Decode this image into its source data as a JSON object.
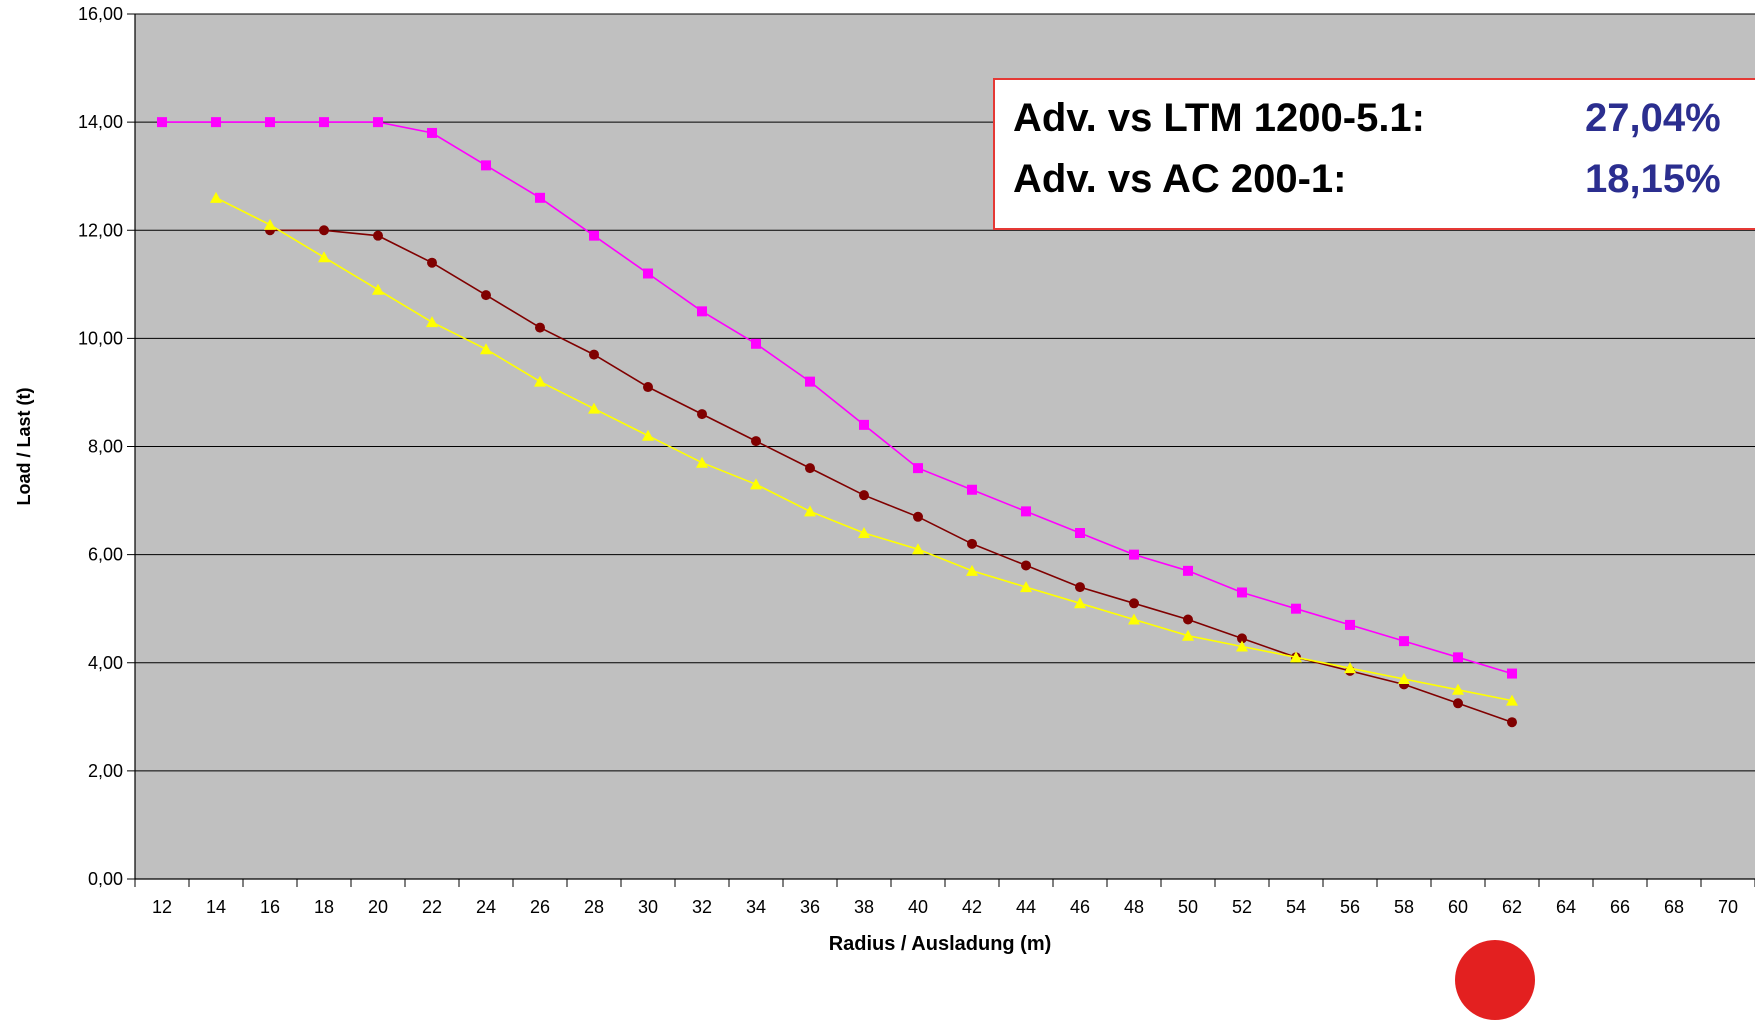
{
  "chart_data": {
    "type": "line",
    "title": "",
    "xlabel": "Radius / Ausladung (m)",
    "ylabel": "Load / Last (t)",
    "xlim": [
      11,
      71
    ],
    "ylim": [
      0,
      16
    ],
    "x_ticks": [
      "12",
      "14",
      "16",
      "18",
      "20",
      "22",
      "24",
      "26",
      "28",
      "30",
      "32",
      "34",
      "36",
      "38",
      "40",
      "42",
      "44",
      "46",
      "48",
      "50",
      "52",
      "54",
      "56",
      "58",
      "60",
      "62",
      "64",
      "66",
      "68",
      "70"
    ],
    "y_ticks": [
      "0,00",
      "2,00",
      "4,00",
      "6,00",
      "8,00",
      "10,00",
      "12,00",
      "14,00",
      "16,00"
    ],
    "y_tick_values": [
      0,
      2,
      4,
      6,
      8,
      10,
      12,
      14,
      16
    ],
    "grid": true,
    "plot_background": "#c0c0c0",
    "series": [
      {
        "color": "#ff00ff",
        "marker": "square",
        "x": [
          12,
          14,
          16,
          18,
          20,
          22,
          24,
          26,
          28,
          30,
          32,
          34,
          36,
          38,
          40,
          42,
          44,
          46,
          48,
          50,
          52,
          54,
          56,
          58,
          60,
          62
        ],
        "values": [
          14.0,
          14.0,
          14.0,
          14.0,
          14.0,
          13.8,
          13.2,
          12.6,
          11.9,
          11.2,
          10.5,
          9.9,
          9.2,
          8.4,
          7.6,
          7.2,
          6.8,
          6.4,
          6.0,
          5.7,
          5.3,
          5.0,
          4.7,
          4.4,
          4.1,
          3.8
        ]
      },
      {
        "color": "#800000",
        "marker": "circle",
        "x": [
          16,
          18,
          20,
          22,
          24,
          26,
          28,
          30,
          32,
          34,
          36,
          38,
          40,
          42,
          44,
          46,
          48,
          50,
          52,
          54,
          56,
          58,
          60,
          62
        ],
        "values": [
          12.0,
          12.0,
          11.9,
          11.4,
          10.8,
          10.2,
          9.7,
          9.1,
          8.6,
          8.1,
          7.6,
          7.1,
          6.7,
          6.2,
          5.8,
          5.4,
          5.1,
          4.8,
          4.45,
          4.1,
          3.85,
          3.6,
          3.25,
          2.9
        ]
      },
      {
        "color": "#ffff00",
        "marker": "triangle",
        "x": [
          14,
          16,
          18,
          20,
          22,
          24,
          26,
          28,
          30,
          32,
          34,
          36,
          38,
          40,
          42,
          44,
          46,
          48,
          50,
          52,
          54,
          56,
          58,
          60,
          62
        ],
        "values": [
          12.6,
          12.1,
          11.5,
          10.9,
          10.3,
          9.8,
          9.2,
          8.7,
          8.2,
          7.7,
          7.3,
          6.8,
          6.4,
          6.1,
          5.7,
          5.4,
          5.1,
          4.8,
          4.5,
          4.3,
          4.1,
          3.9,
          3.7,
          3.5,
          3.3
        ]
      }
    ]
  },
  "legend_box": {
    "rows": [
      {
        "label": "Adv. vs LTM 1200-5.1:",
        "value": "27,04%"
      },
      {
        "label": "Adv. vs AC 200-1:",
        "value": "18,15%"
      }
    ],
    "border_color": "#e53935",
    "value_color": "#2b2e8f"
  }
}
